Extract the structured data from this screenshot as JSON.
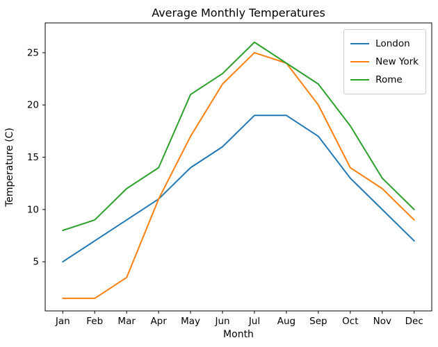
{
  "chart_data": {
    "type": "line",
    "title": "Average Monthly Temperatures",
    "xlabel": "Month",
    "ylabel": "Temperature (C)",
    "categories": [
      "Jan",
      "Feb",
      "Mar",
      "Apr",
      "May",
      "Jun",
      "Jul",
      "Aug",
      "Sep",
      "Oct",
      "Nov",
      "Dec"
    ],
    "series": [
      {
        "name": "London",
        "color": "#1f77b4",
        "values": [
          5,
          7,
          9,
          11,
          14,
          16,
          19,
          19,
          17,
          13,
          10,
          7
        ]
      },
      {
        "name": "New York",
        "color": "#ff7f0e",
        "values": [
          1.5,
          1.5,
          3.5,
          11,
          17,
          22,
          25,
          24,
          20,
          14,
          12,
          9
        ]
      },
      {
        "name": "Rome",
        "color": "#2ca02c",
        "values": [
          8,
          9,
          12,
          14,
          21,
          23,
          26,
          24,
          22,
          18,
          13,
          10
        ]
      }
    ],
    "yticks": [
      5,
      10,
      15,
      20,
      25
    ],
    "ylim": [
      0.3,
      27.85
    ],
    "xlim": [
      -0.55,
      11.55
    ],
    "grid": false,
    "legend_position": "upper right",
    "legend_border_color": "#cccccc",
    "spine_color": "#000000",
    "background_color": "#ffffff",
    "line_width": 2
  }
}
